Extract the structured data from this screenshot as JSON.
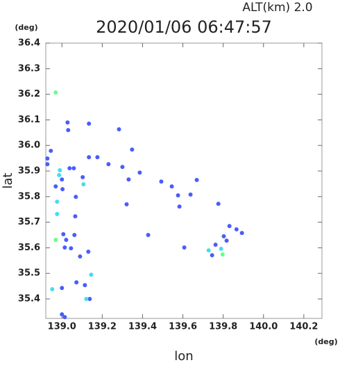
{
  "chart_data": {
    "type": "scatter",
    "title": "2020/01/06 06:47:57",
    "subtitle": "ALT(km)  2.0",
    "x_label": "lon",
    "y_label": "lat",
    "x_unit": "(deg)",
    "y_unit": "(deg)",
    "xlim": [
      138.92,
      140.29
    ],
    "ylim": [
      35.324,
      36.4
    ],
    "xticks": [
      {
        "value": 139.0,
        "label": "139.0"
      },
      139.2,
      139.4,
      139.6,
      139.8,
      {
        "value": 140.0,
        "label": "140.0"
      },
      140.2
    ],
    "yticks": [
      35.4,
      35.5,
      35.6,
      35.7,
      35.8,
      35.9,
      {
        "value": 36.0,
        "label": "36.0"
      },
      36.1,
      36.2,
      36.3,
      36.4
    ],
    "series": [
      {
        "color": "#4a5cff",
        "x": [
          139.028,
          139.031,
          139.134,
          139.283,
          139.348,
          138.945,
          138.928,
          138.928,
          139.038,
          139.059,
          139.0,
          138.969,
          139.003,
          139.103,
          139.134,
          139.176,
          139.231,
          139.3,
          139.331,
          139.386,
          139.493,
          139.545,
          139.583,
          139.576,
          139.669,
          139.638,
          139.776,
          139.069,
          139.066,
          139.007,
          139.062,
          139.014,
          139.021,
          139.131,
          139.09,
          139.045,
          139.072,
          139.114,
          139.0,
          139.138,
          139.0,
          139.014,
          139.428,
          139.321,
          139.607,
          139.745,
          139.762,
          139.803,
          139.831,
          139.866,
          139.893,
          139.817
        ],
        "y": [
          36.09,
          36.06,
          36.085,
          36.063,
          35.984,
          35.979,
          35.949,
          35.927,
          35.911,
          35.911,
          35.867,
          35.84,
          35.829,
          35.876,
          35.954,
          35.954,
          35.927,
          35.916,
          35.867,
          35.894,
          35.859,
          35.84,
          35.761,
          35.805,
          35.865,
          35.808,
          35.772,
          35.799,
          35.723,
          35.653,
          35.65,
          35.601,
          35.631,
          35.585,
          35.566,
          35.598,
          35.465,
          35.454,
          35.443,
          35.4,
          35.34,
          35.329,
          35.65,
          35.77,
          35.601,
          35.571,
          35.612,
          35.645,
          35.685,
          35.672,
          35.658,
          35.628
        ]
      },
      {
        "color": "#44ddee",
        "x": [
          138.99,
          138.986,
          139.107,
          138.976,
          138.976,
          139.145,
          138.952,
          139.121,
          139.79,
          139.728
        ],
        "y": [
          35.903,
          35.884,
          35.848,
          35.78,
          35.732,
          35.495,
          35.438,
          35.4,
          35.596,
          35.59
        ]
      },
      {
        "color": "#66ff88",
        "x": [
          138.969,
          138.969,
          139.797
        ],
        "y": [
          36.207,
          35.631,
          35.574
        ]
      }
    ]
  }
}
